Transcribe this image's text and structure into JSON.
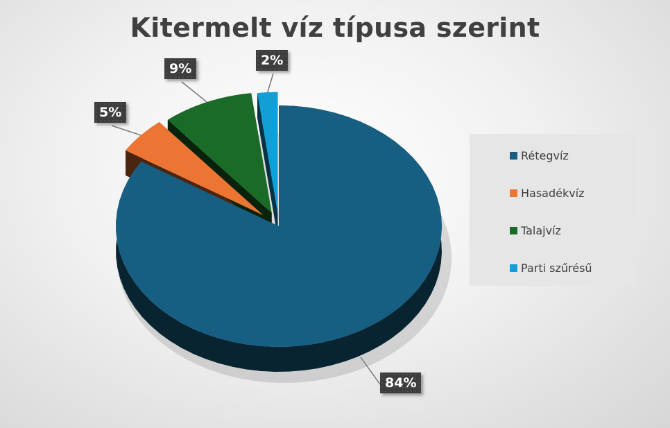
{
  "chart_data": {
    "type": "pie",
    "title": "Kitermelt víz típusa szerint",
    "style": "3d-exploded",
    "legend_position": "right",
    "slices": [
      {
        "name": "Rétegvíz",
        "value": 84,
        "label": "84%",
        "color": "#175f82"
      },
      {
        "name": "Hasadékvíz",
        "value": 5,
        "label": "5%",
        "color": "#ed7533"
      },
      {
        "name": "Talajvíz",
        "value": 9,
        "label": "9%",
        "color": "#1b6b28"
      },
      {
        "name": "Parti szűrésű",
        "value": 2,
        "label": "2%",
        "color": "#129fd6"
      }
    ]
  }
}
